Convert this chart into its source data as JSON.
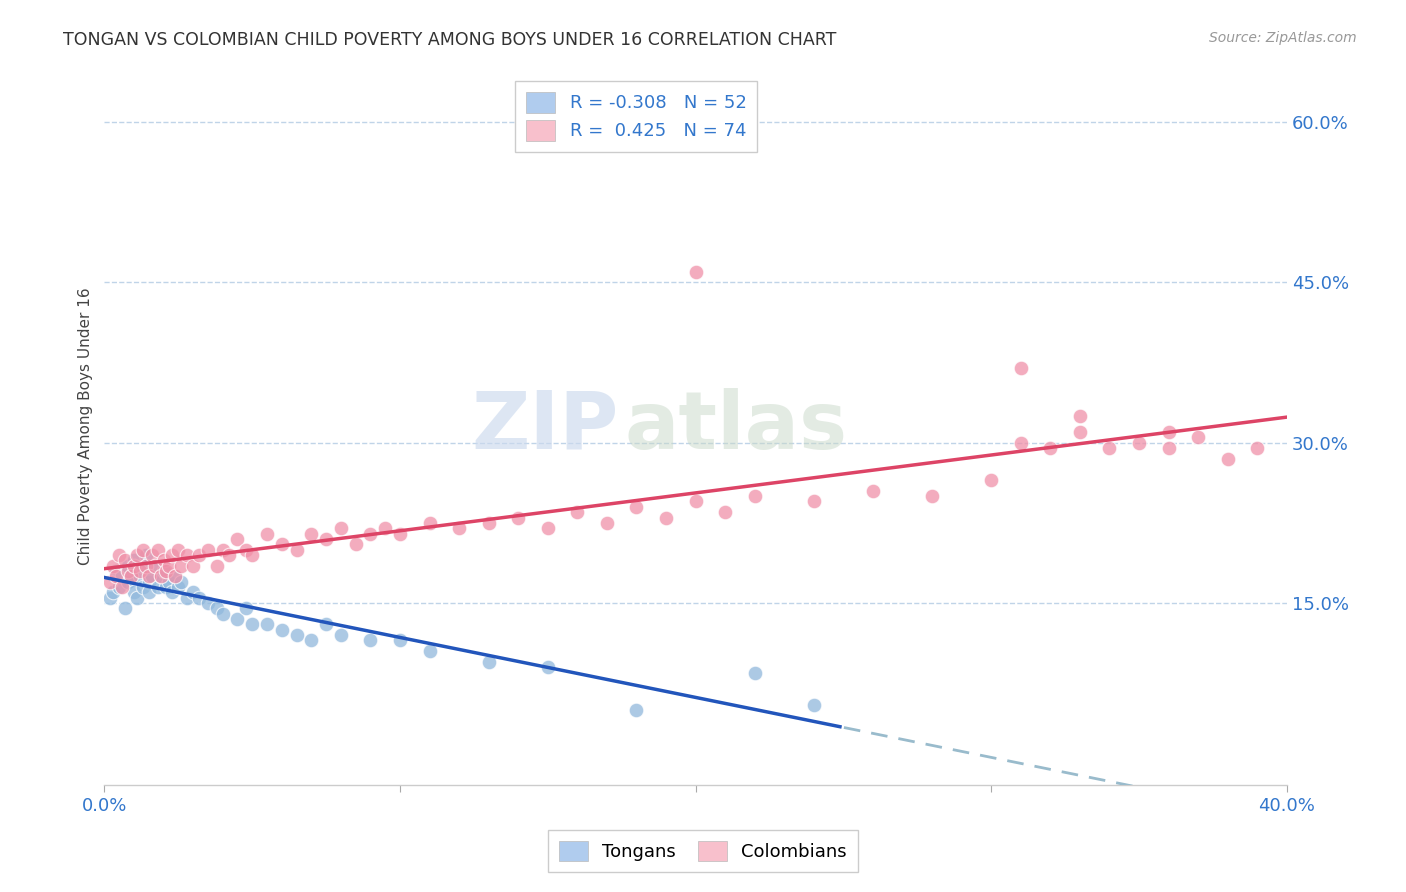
{
  "title": "TONGAN VS COLOMBIAN CHILD POVERTY AMONG BOYS UNDER 16 CORRELATION CHART",
  "source": "Source: ZipAtlas.com",
  "ylabel": "Child Poverty Among Boys Under 16",
  "xlim": [
    0.0,
    0.4
  ],
  "ylim": [
    -0.02,
    0.65
  ],
  "ytick_labels": [
    "15.0%",
    "30.0%",
    "45.0%",
    "60.0%"
  ],
  "ytick_values": [
    0.15,
    0.3,
    0.45,
    0.6
  ],
  "watermark_zip": "ZIP",
  "watermark_atlas": "atlas",
  "blue_color": "#90b8dc",
  "pink_color": "#f090a8",
  "blue_line_color": "#2255bb",
  "pink_line_color": "#dd4466",
  "dashed_line_color": "#99bbcc",
  "grid_color": "#c0d4e8",
  "background_color": "#ffffff",
  "legend_label_blue": "R = -0.308   N = 52",
  "legend_label_pink": "R =  0.425   N = 74",
  "tongans_x": [
    0.002,
    0.003,
    0.004,
    0.005,
    0.006,
    0.007,
    0.008,
    0.008,
    0.009,
    0.01,
    0.01,
    0.011,
    0.012,
    0.013,
    0.013,
    0.014,
    0.015,
    0.015,
    0.016,
    0.017,
    0.018,
    0.019,
    0.02,
    0.021,
    0.022,
    0.023,
    0.024,
    0.025,
    0.026,
    0.028,
    0.03,
    0.032,
    0.035,
    0.038,
    0.04,
    0.045,
    0.048,
    0.05,
    0.055,
    0.06,
    0.065,
    0.07,
    0.075,
    0.08,
    0.09,
    0.1,
    0.11,
    0.13,
    0.15,
    0.18,
    0.22,
    0.24
  ],
  "tongans_y": [
    0.155,
    0.16,
    0.18,
    0.165,
    0.175,
    0.145,
    0.185,
    0.17,
    0.175,
    0.16,
    0.19,
    0.155,
    0.175,
    0.165,
    0.185,
    0.195,
    0.17,
    0.16,
    0.175,
    0.185,
    0.165,
    0.175,
    0.18,
    0.165,
    0.17,
    0.16,
    0.175,
    0.165,
    0.17,
    0.155,
    0.16,
    0.155,
    0.15,
    0.145,
    0.14,
    0.135,
    0.145,
    0.13,
    0.13,
    0.125,
    0.12,
    0.115,
    0.13,
    0.12,
    0.115,
    0.115,
    0.105,
    0.095,
    0.09,
    0.05,
    0.085,
    0.055
  ],
  "colombians_x": [
    0.002,
    0.003,
    0.004,
    0.005,
    0.006,
    0.007,
    0.008,
    0.009,
    0.01,
    0.011,
    0.012,
    0.013,
    0.014,
    0.015,
    0.016,
    0.017,
    0.018,
    0.019,
    0.02,
    0.021,
    0.022,
    0.023,
    0.024,
    0.025,
    0.026,
    0.028,
    0.03,
    0.032,
    0.035,
    0.038,
    0.04,
    0.042,
    0.045,
    0.048,
    0.05,
    0.055,
    0.06,
    0.065,
    0.07,
    0.075,
    0.08,
    0.085,
    0.09,
    0.095,
    0.1,
    0.11,
    0.12,
    0.13,
    0.14,
    0.15,
    0.16,
    0.17,
    0.18,
    0.19,
    0.2,
    0.21,
    0.22,
    0.24,
    0.26,
    0.28,
    0.3,
    0.31,
    0.32,
    0.33,
    0.34,
    0.35,
    0.36,
    0.37,
    0.38,
    0.39,
    0.2,
    0.31,
    0.33,
    0.36
  ],
  "colombians_y": [
    0.17,
    0.185,
    0.175,
    0.195,
    0.165,
    0.19,
    0.18,
    0.175,
    0.185,
    0.195,
    0.18,
    0.2,
    0.185,
    0.175,
    0.195,
    0.185,
    0.2,
    0.175,
    0.19,
    0.18,
    0.185,
    0.195,
    0.175,
    0.2,
    0.185,
    0.195,
    0.185,
    0.195,
    0.2,
    0.185,
    0.2,
    0.195,
    0.21,
    0.2,
    0.195,
    0.215,
    0.205,
    0.2,
    0.215,
    0.21,
    0.22,
    0.205,
    0.215,
    0.22,
    0.215,
    0.225,
    0.22,
    0.225,
    0.23,
    0.22,
    0.235,
    0.225,
    0.24,
    0.23,
    0.245,
    0.235,
    0.25,
    0.245,
    0.255,
    0.25,
    0.265,
    0.3,
    0.295,
    0.31,
    0.295,
    0.3,
    0.295,
    0.305,
    0.285,
    0.295,
    0.46,
    0.37,
    0.325,
    0.31
  ]
}
